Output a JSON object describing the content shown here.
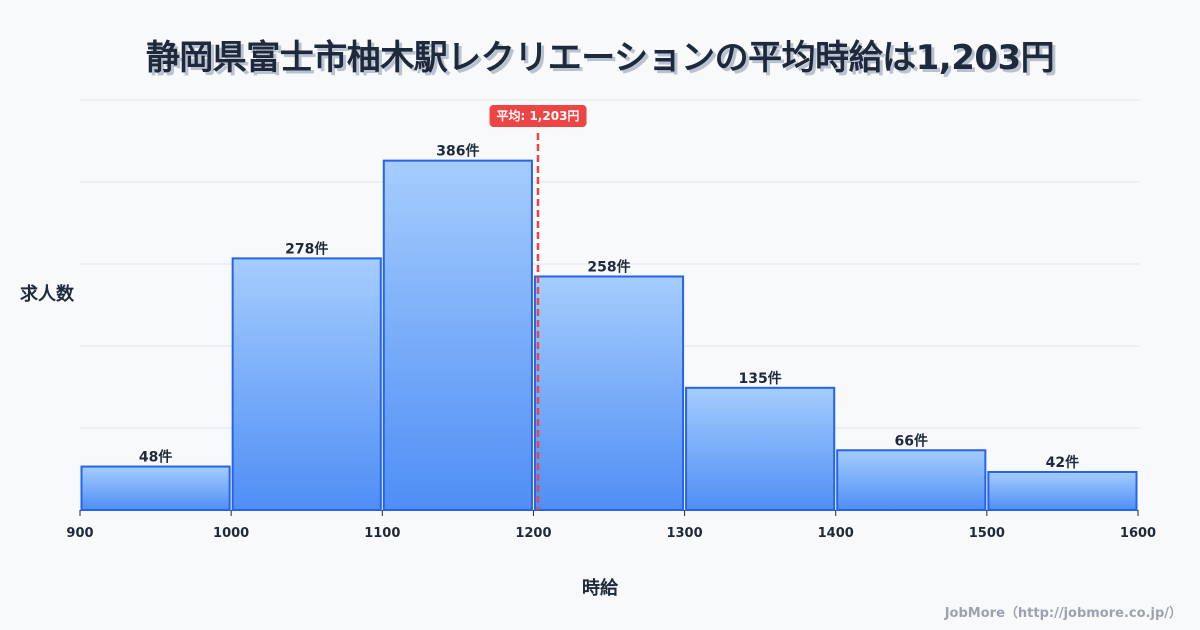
{
  "title": "静岡県富士市柚木駅レクリエーションの平均時給は1,203円",
  "axis": {
    "ylabel": "求人数",
    "xlabel": "時給"
  },
  "average": {
    "label": "平均: 1,203円",
    "value": 1203,
    "color": "#ef4444"
  },
  "credit": "JobMore（http://jobmore.co.jp/）",
  "colors": {
    "bar_fill_top": "#a5cdfd",
    "bar_fill_bottom": "#4f8ef5",
    "bar_stroke": "#2563eb",
    "grid": "#e2e5ec",
    "text": "#1e293b"
  },
  "chart_data": {
    "type": "bar",
    "title": "静岡県富士市柚木駅レクリエーションの平均時給は1,203円",
    "xlabel": "時給",
    "ylabel": "求人数",
    "bins": [
      {
        "from": 900,
        "to": 1000,
        "count": 48,
        "label": "48件"
      },
      {
        "from": 1000,
        "to": 1100,
        "count": 278,
        "label": "278件"
      },
      {
        "from": 1100,
        "to": 1200,
        "count": 386,
        "label": "386件"
      },
      {
        "from": 1200,
        "to": 1300,
        "count": 258,
        "label": "258件"
      },
      {
        "from": 1300,
        "to": 1400,
        "count": 135,
        "label": "135件"
      },
      {
        "from": 1400,
        "to": 1500,
        "count": 66,
        "label": "66件"
      },
      {
        "from": 1500,
        "to": 1600,
        "count": 42,
        "label": "42件"
      }
    ],
    "categories": [
      "900-1000",
      "1000-1100",
      "1100-1200",
      "1200-1300",
      "1300-1400",
      "1400-1500",
      "1500-1600"
    ],
    "values": [
      48,
      278,
      386,
      258,
      135,
      66,
      42
    ],
    "x_ticks": [
      900,
      1000,
      1100,
      1200,
      1300,
      1400,
      1500,
      1600
    ],
    "xlim": [
      900,
      1600
    ],
    "ylim": [
      0,
      453
    ],
    "grid": true,
    "y_tick_labels_visible": false,
    "annotations": [
      {
        "type": "vline",
        "x": 1203,
        "label": "平均: 1,203円",
        "style": "dashed",
        "color": "#ef4444"
      }
    ]
  }
}
